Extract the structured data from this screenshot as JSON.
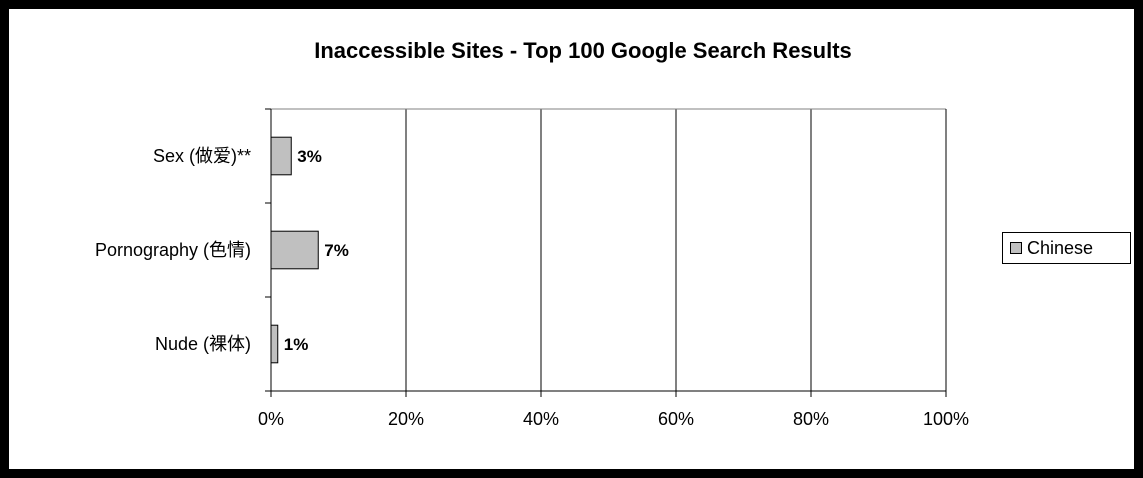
{
  "chart_data": {
    "type": "bar",
    "orientation": "horizontal",
    "title": "Inaccessible Sites - Top 100 Google Search Results",
    "categories": [
      "Sex (做爱)**",
      "Pornography (色情)",
      "Nude (裸体)"
    ],
    "series": [
      {
        "name": "Chinese",
        "values": [
          3,
          7,
          1
        ],
        "labels": [
          "3%",
          "7%",
          "1%"
        ],
        "color": "#c0c0c0"
      }
    ],
    "xlim": [
      0,
      100
    ],
    "x_ticks": [
      "0%",
      "20%",
      "40%",
      "60%",
      "80%",
      "100%"
    ],
    "gridlines": "vertical",
    "legend_position": "right"
  }
}
